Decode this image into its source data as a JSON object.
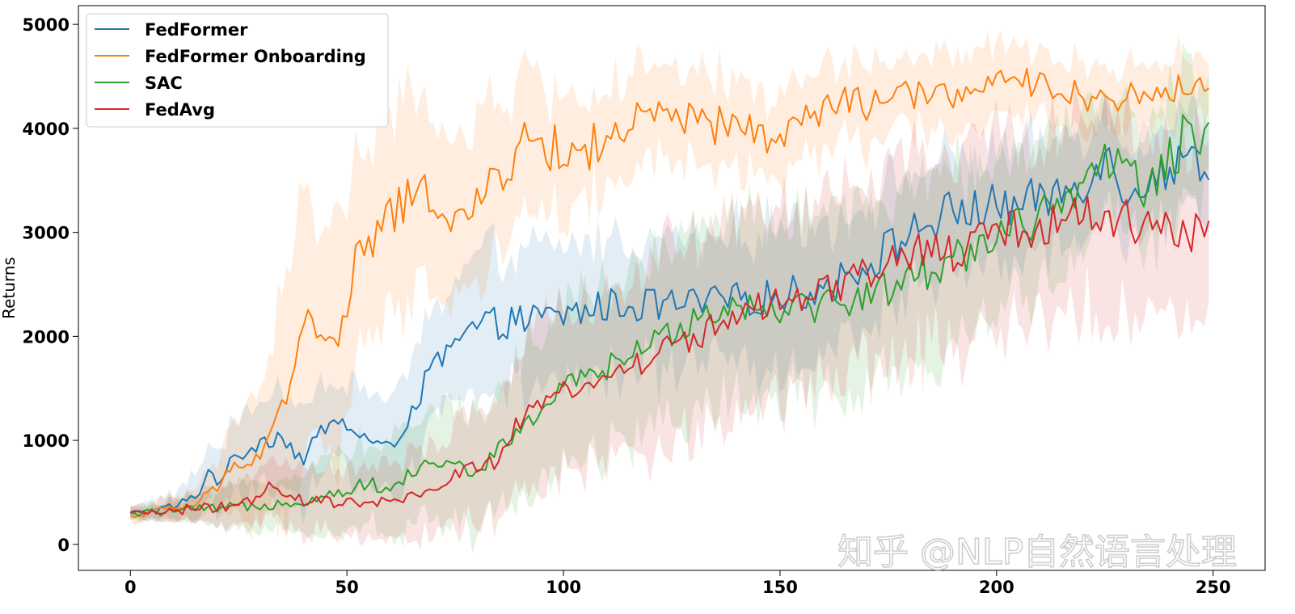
{
  "chart_data": {
    "type": "line",
    "title": "",
    "xlabel": "",
    "ylabel": "Returns",
    "xlim": [
      -12,
      262
    ],
    "ylim": [
      -250,
      5180
    ],
    "xticks": [
      0,
      50,
      100,
      150,
      200,
      250
    ],
    "yticks": [
      0,
      1000,
      2000,
      3000,
      4000,
      5000
    ],
    "grid": false,
    "legend_position": "top-left",
    "shaded_bands": true,
    "series": [
      {
        "name": "FedFormer",
        "color": "#1f77b4",
        "x": [
          0,
          10,
          15,
          18,
          20,
          25,
          30,
          35,
          40,
          45,
          50,
          55,
          60,
          65,
          70,
          75,
          80,
          90,
          100,
          110,
          120,
          130,
          140,
          150,
          160,
          170,
          180,
          190,
          200,
          210,
          220,
          225,
          230,
          240,
          245,
          249
        ],
        "y": [
          290,
          360,
          450,
          700,
          620,
          850,
          1000,
          1050,
          800,
          1150,
          1150,
          1000,
          900,
          1300,
          1700,
          1900,
          2100,
          2150,
          2200,
          2300,
          2300,
          2300,
          2350,
          2400,
          2450,
          2700,
          3000,
          3200,
          3250,
          3300,
          3500,
          3750,
          3400,
          3600,
          3750,
          3600
        ],
        "band": [
          60,
          120,
          220,
          260,
          280,
          350,
          420,
          450,
          450,
          450,
          450,
          450,
          450,
          500,
          550,
          600,
          650,
          650,
          650,
          650,
          650,
          650,
          650,
          650,
          650,
          600,
          550,
          500,
          500,
          500,
          500,
          450,
          450,
          450,
          400,
          400
        ]
      },
      {
        "name": "FedFormer Onboarding",
        "color": "#ff7f0e",
        "x": [
          0,
          10,
          15,
          20,
          25,
          30,
          33,
          36,
          40,
          45,
          50,
          52,
          55,
          60,
          65,
          70,
          75,
          80,
          85,
          90,
          95,
          100,
          110,
          120,
          130,
          140,
          150,
          160,
          170,
          180,
          190,
          200,
          210,
          220,
          230,
          240,
          249
        ],
        "y": [
          270,
          350,
          380,
          550,
          800,
          850,
          1150,
          1400,
          2200,
          1900,
          2100,
          2900,
          2800,
          3200,
          3300,
          3400,
          3100,
          3200,
          3600,
          3800,
          3900,
          3700,
          3900,
          4100,
          4050,
          4000,
          3900,
          4200,
          4250,
          4300,
          4350,
          4400,
          4450,
          4300,
          4300,
          4350,
          4500
        ],
        "band": [
          60,
          100,
          150,
          250,
          400,
          700,
          900,
          1100,
          1200,
          1100,
          1100,
          1000,
          1000,
          900,
          900,
          850,
          800,
          750,
          700,
          650,
          600,
          550,
          500,
          450,
          450,
          450,
          400,
          400,
          400,
          350,
          350,
          350,
          300,
          300,
          300,
          300,
          300
        ]
      },
      {
        "name": "SAC",
        "color": "#2ca02c",
        "x": [
          0,
          10,
          20,
          30,
          40,
          50,
          55,
          60,
          65,
          70,
          75,
          80,
          85,
          90,
          95,
          100,
          110,
          120,
          130,
          140,
          150,
          160,
          170,
          180,
          190,
          200,
          210,
          220,
          225,
          230,
          235,
          240,
          245,
          249
        ],
        "y": [
          290,
          320,
          340,
          380,
          420,
          520,
          600,
          500,
          700,
          800,
          750,
          700,
          900,
          1100,
          1300,
          1500,
          1700,
          1900,
          2200,
          2300,
          2300,
          2300,
          2400,
          2550,
          2750,
          3000,
          3150,
          3300,
          3800,
          3600,
          3400,
          3700,
          4000,
          3850
        ],
        "band": [
          60,
          100,
          160,
          230,
          300,
          380,
          420,
          450,
          480,
          520,
          560,
          600,
          650,
          700,
          750,
          800,
          850,
          850,
          850,
          850,
          850,
          850,
          850,
          850,
          800,
          750,
          700,
          650,
          600,
          600,
          600,
          600,
          550,
          550
        ]
      },
      {
        "name": "FedAvg",
        "color": "#d62728",
        "x": [
          0,
          10,
          20,
          30,
          32,
          35,
          40,
          50,
          55,
          60,
          65,
          70,
          75,
          80,
          85,
          90,
          95,
          100,
          110,
          120,
          130,
          140,
          150,
          160,
          170,
          180,
          190,
          200,
          210,
          220,
          230,
          240,
          249
        ],
        "y": [
          290,
          330,
          350,
          420,
          600,
          450,
          420,
          400,
          380,
          420,
          450,
          500,
          700,
          750,
          800,
          1200,
          1300,
          1500,
          1600,
          1800,
          2000,
          2200,
          2300,
          2400,
          2600,
          2800,
          2800,
          3000,
          3050,
          3200,
          3100,
          3050,
          3000
        ],
        "band": [
          60,
          100,
          160,
          250,
          300,
          300,
          300,
          320,
          330,
          350,
          380,
          420,
          480,
          550,
          620,
          700,
          750,
          800,
          850,
          900,
          950,
          950,
          950,
          950,
          950,
          950,
          950,
          950,
          900,
          900,
          900,
          850,
          850
        ]
      }
    ]
  },
  "watermark": "知乎 @NLP自然语言处理"
}
